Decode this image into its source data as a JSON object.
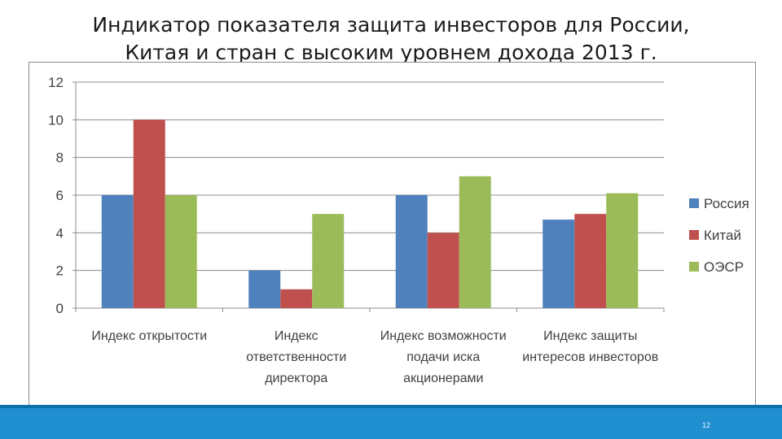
{
  "slide": {
    "title_line1": "Индикатор показателя защита инвесторов для России,",
    "title_line2": "Китая и стран с высоким уровнем дохода 2013 г.",
    "page_number": "12"
  },
  "colors": {
    "russia": "#4f81bd",
    "china": "#c0504d",
    "oecd": "#9bbb59",
    "footer": "#1f8fd0"
  },
  "chart_data": {
    "type": "bar",
    "title": "",
    "xlabel": "",
    "ylabel": "",
    "ylim": [
      0,
      12
    ],
    "yticks": [
      0,
      2,
      4,
      6,
      8,
      10,
      12
    ],
    "grid": true,
    "legend_position": "right",
    "categories": [
      [
        "Индекс открытости"
      ],
      [
        "Индекс",
        "ответственности",
        "директора"
      ],
      [
        "Индекс возможности",
        "подачи иска",
        "акционерами"
      ],
      [
        "Индекс защиты",
        "интересов инвесторов"
      ]
    ],
    "series": [
      {
        "name": "Россия",
        "color": "#4f81bd",
        "values": [
          6,
          2,
          6,
          4.7
        ]
      },
      {
        "name": "Китай",
        "color": "#c0504d",
        "values": [
          10,
          1,
          4,
          5
        ]
      },
      {
        "name": "ОЭСР",
        "color": "#9bbb59",
        "values": [
          6,
          5,
          7,
          6.1
        ]
      }
    ]
  }
}
